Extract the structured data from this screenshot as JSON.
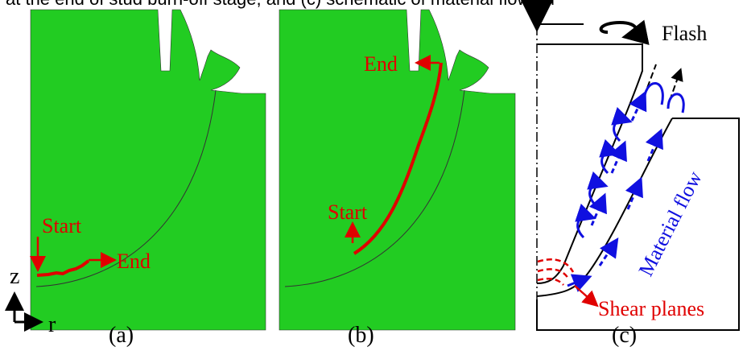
{
  "caption_fragment": "l at the end of stud burn-off stage, and (c) schematic of material flow du",
  "panel_a": {
    "start": "Start",
    "end": "End",
    "label": "(a)"
  },
  "axes": {
    "z": "z",
    "r": "r"
  },
  "panel_b": {
    "start": "Start",
    "end": "End",
    "label": "(b)"
  },
  "panel_c": {
    "flash": "Flash",
    "material_flow": "Material flow",
    "shear_planes": "Shear planes",
    "label": "(c)"
  }
}
